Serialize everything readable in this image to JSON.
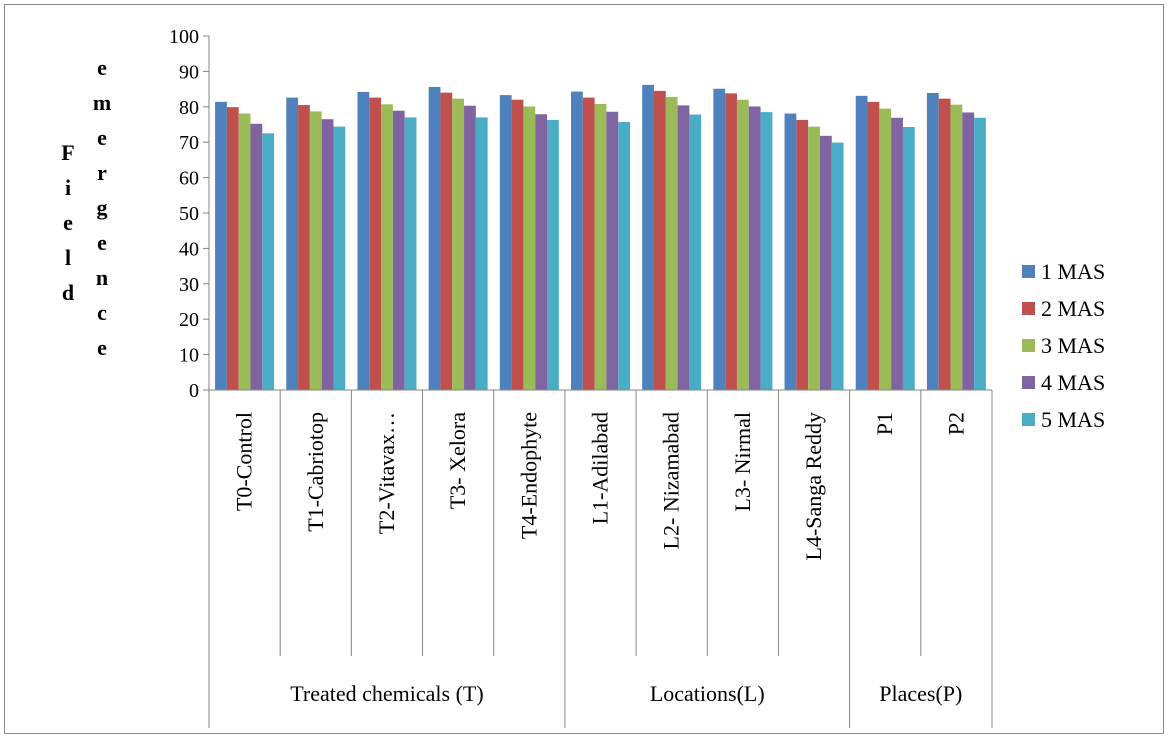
{
  "chart_data": {
    "type": "bar",
    "title": "",
    "xlabel": "",
    "ylabel_columns": [
      "Field",
      "emergence"
    ],
    "ylim": [
      0,
      100
    ],
    "yticks": [
      0,
      10,
      20,
      30,
      40,
      50,
      60,
      70,
      80,
      90,
      100
    ],
    "grid": false,
    "legend_position": "right",
    "categories": [
      "T0-Control",
      "T1-Cabriotop",
      "T2-Vitavax…",
      "T3- Xelora",
      "T4-Endophyte",
      "L1-Adilabad",
      "L2- Nizamabad",
      "L3- Nirmal",
      "L4-Sanga Reddy",
      "P1",
      "P2"
    ],
    "groups": [
      {
        "label": "Treated chemicals (T)",
        "count": 5
      },
      {
        "label": "Locations(L)",
        "count": 4
      },
      {
        "label": "Places(P)",
        "count": 2
      }
    ],
    "series": [
      {
        "name": "1 MAS",
        "color": "#4F81BD",
        "values": [
          81.4,
          82.6,
          84.2,
          85.6,
          83.3,
          84.3,
          86.2,
          85.1,
          78.1,
          83.1,
          83.9
        ]
      },
      {
        "name": "2 MAS",
        "color": "#C0504D",
        "values": [
          79.9,
          80.5,
          82.6,
          84.0,
          82.0,
          82.6,
          84.5,
          83.8,
          76.3,
          81.4,
          82.3
        ]
      },
      {
        "name": "3 MAS",
        "color": "#9BBB59",
        "values": [
          78.1,
          78.7,
          80.7,
          82.3,
          80.1,
          80.8,
          82.8,
          82.0,
          74.4,
          79.5,
          80.6
        ]
      },
      {
        "name": "4 MAS",
        "color": "#8064A2",
        "values": [
          75.2,
          76.5,
          78.9,
          80.3,
          77.9,
          78.6,
          80.4,
          80.1,
          71.8,
          76.9,
          78.4
        ]
      },
      {
        "name": "5 MAS",
        "color": "#4BACC6",
        "values": [
          72.5,
          74.4,
          77.0,
          77.0,
          76.3,
          75.7,
          77.8,
          78.5,
          69.9,
          74.3,
          76.9
        ]
      }
    ]
  }
}
